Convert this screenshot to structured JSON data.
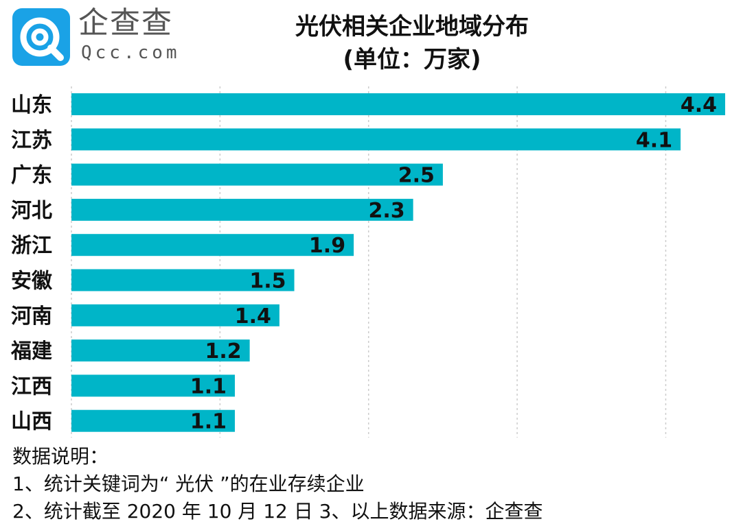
{
  "logo": {
    "brand_cn": "企查查",
    "brand_en": "Qcc.com",
    "brand_color": "#1aa2e6"
  },
  "header": {
    "title_line1": "光伏相关企业地域分布",
    "title_line2": "(单位：万家)"
  },
  "chart_data": {
    "type": "bar",
    "orientation": "horizontal",
    "title": "光伏相关企业地域分布",
    "subtitle": "(单位：万家)",
    "categories": [
      "山东",
      "江苏",
      "广东",
      "河北",
      "浙江",
      "安徽",
      "河南",
      "福建",
      "江西",
      "山西"
    ],
    "values": [
      4.4,
      4.1,
      2.5,
      2.3,
      1.9,
      1.5,
      1.4,
      1.2,
      1.1,
      1.1
    ],
    "labels": [
      "4.4",
      "4.1",
      "2.5",
      "2.3",
      "1.9",
      "1.5",
      "1.4",
      "1.2",
      "1.1",
      "1.1"
    ],
    "xlim": [
      0,
      4.4
    ],
    "gridlines": [
      1,
      2,
      3,
      4
    ],
    "grid": true,
    "bar_color": "#00b5c8"
  },
  "notes": {
    "heading": "数据说明：",
    "line1": "1、统计关键词为“ 光伏 ”的在业存续企业",
    "line2": "2、统计截至 2020 年 10 月 12 日  3、以上数据来源：企查查"
  }
}
